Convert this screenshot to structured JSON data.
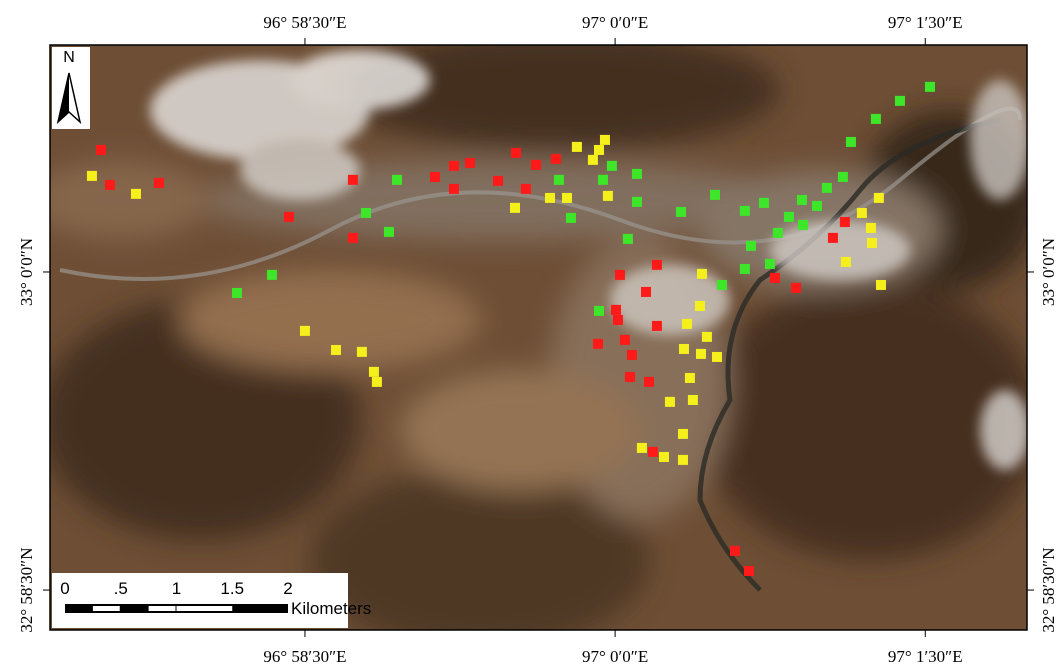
{
  "chart_data": {
    "type": "scatter-map",
    "north_label": "N",
    "xlim": [
      96.95445,
      97.0332
    ],
    "ylim": [
      32.97186,
      33.01784
    ],
    "xticks": [
      {
        "value": 96.975,
        "label": "96°  58′30″E"
      },
      {
        "value": 97.0,
        "label": "97°  0′0″E"
      },
      {
        "value": 97.025,
        "label": "97°  1′30″E"
      }
    ],
    "yticks": [
      {
        "value": 33.0,
        "label": "33°  0′0″N"
      },
      {
        "value": 32.975,
        "label": "32°  58′30″N"
      }
    ],
    "series": [
      {
        "color": "#ff1a1a",
        "x": [
          96.95856,
          96.95928,
          96.96323,
          96.97371,
          96.97887,
          96.97887,
          96.98548,
          96.98701,
          96.9883,
          96.98701,
          96.99056,
          96.99201,
          96.99362,
          96.99523,
          96.99281,
          97.00337,
          97.00039,
          97.00249,
          97.00007,
          97.00023,
          97.00337,
          97.00079,
          97.00136,
          96.99862,
          97.0012,
          97.00273,
          97.00305,
          97.01288,
          97.01458,
          97.01756,
          97.01852,
          97.00966,
          97.01079
        ],
        "y": [
          33.00959,
          33.00684,
          33.007,
          33.00433,
          33.00724,
          33.00268,
          33.00747,
          33.00834,
          33.00857,
          33.00653,
          33.00716,
          33.00936,
          33.00842,
          33.00889,
          33.00653,
          33.00056,
          32.99977,
          32.99843,
          32.99702,
          32.99623,
          32.99576,
          32.99466,
          32.99348,
          32.99435,
          32.99175,
          32.99136,
          32.98586,
          32.99953,
          32.99875,
          33.00268,
          33.00393,
          32.97808,
          32.9765
        ]
      },
      {
        "color": "#f5f01c",
        "x": [
          96.95783,
          96.96138,
          96.99193,
          96.99475,
          96.99612,
          96.99692,
          96.99821,
          96.9987,
          96.99918,
          96.99942,
          96.975,
          96.9775,
          96.97959,
          96.98056,
          96.9808,
          97.007,
          97.00684,
          97.0074,
          97.00579,
          97.00821,
          97.00692,
          97.00555,
          97.00603,
          97.00442,
          97.00627,
          97.00547,
          97.00216,
          97.00394,
          97.00547,
          97.01989,
          97.02126,
          97.02062,
          97.0207,
          97.0186,
          97.02143
        ],
        "y": [
          33.00755,
          33.00614,
          33.00504,
          33.00582,
          33.00582,
          33.00983,
          33.00881,
          33.00959,
          33.01038,
          33.00598,
          32.99537,
          32.99387,
          32.99372,
          32.99215,
          32.99136,
          32.99985,
          32.99733,
          32.9949,
          32.99592,
          32.99332,
          32.99356,
          32.99395,
          32.99167,
          32.98979,
          32.98994,
          32.98727,
          32.98617,
          32.98546,
          32.98523,
          33.00464,
          33.00582,
          33.00346,
          33.00228,
          33.00079,
          32.99898
        ]
      },
      {
        "color": "#3ee62a",
        "x": [
          96.96952,
          96.97234,
          96.97992,
          96.98177,
          96.98242,
          96.99547,
          96.99644,
          96.99902,
          96.99974,
          97.00176,
          97.00176,
          97.00103,
          97.00531,
          97.00805,
          97.01046,
          97.012,
          97.01095,
          97.01312,
          97.01401,
          97.01506,
          97.01514,
          97.01627,
          97.01707,
          97.01836,
          97.01901,
          97.02102,
          97.02296,
          97.02538,
          97.01046,
          97.01248,
          96.9987,
          97.00861
        ],
        "y": [
          32.99835,
          32.99977,
          33.00464,
          33.00315,
          33.00724,
          33.00724,
          33.00425,
          33.00724,
          33.00834,
          33.00771,
          33.00551,
          33.0026,
          33.00472,
          33.00606,
          33.0048,
          33.00543,
          33.00205,
          33.00307,
          33.00433,
          33.00566,
          33.0037,
          33.00519,
          33.00661,
          33.00747,
          33.01022,
          33.01203,
          33.01345,
          33.01455,
          33.00024,
          33.00063,
          32.99694,
          32.99898
        ]
      }
    ],
    "scale_bar": {
      "unit": "Kilometers",
      "ticks": [
        0,
        {
          "value": 0.5,
          "label": ".5"
        },
        1,
        {
          "value": 1.5,
          "label": "1.5"
        },
        2
      ]
    }
  }
}
